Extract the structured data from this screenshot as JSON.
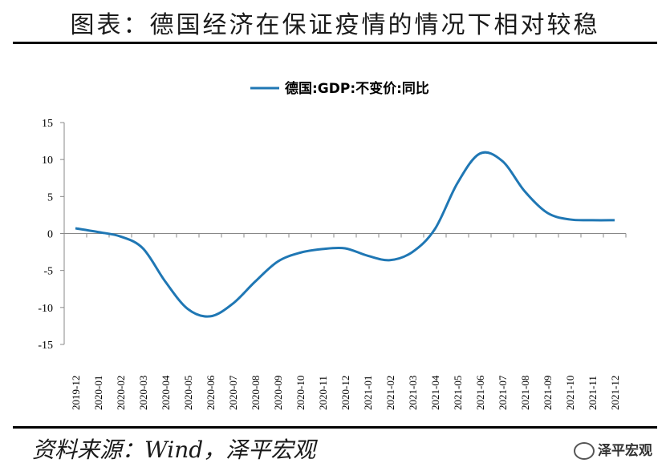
{
  "figure": {
    "title": "图表：德国经济在保证疫情的情况下相对较稳",
    "source": "资料来源：Wind，泽平宏观",
    "watermark": "泽平宏观"
  },
  "chart_data": {
    "type": "line",
    "legend": "top-center",
    "grid": false,
    "ylim": [
      -15,
      15
    ],
    "yticks": [
      15,
      10,
      5,
      0,
      -5,
      -10,
      -15
    ],
    "categories": [
      "2019-12",
      "2020-01",
      "2020-02",
      "2020-03",
      "2020-04",
      "2020-05",
      "2020-06",
      "2020-07",
      "2020-08",
      "2020-09",
      "2020-10",
      "2020-11",
      "2020-12",
      "2021-01",
      "2021-02",
      "2021-03",
      "2021-04",
      "2021-05",
      "2021-06",
      "2021-07",
      "2021-08",
      "2021-09",
      "2021-10",
      "2021-11",
      "2021-12"
    ],
    "series": [
      {
        "name": "德国:GDP:不变价:同比",
        "color": "#1f77b4",
        "values": [
          0.7,
          0.2,
          -0.4,
          -2.0,
          -6.5,
          -10.2,
          -11.2,
          -9.5,
          -6.5,
          -3.8,
          -2.6,
          -2.1,
          -2.0,
          -3.0,
          -3.6,
          -2.5,
          0.6,
          6.8,
          10.8,
          9.8,
          5.7,
          2.8,
          1.9,
          1.8,
          1.8
        ]
      }
    ]
  }
}
